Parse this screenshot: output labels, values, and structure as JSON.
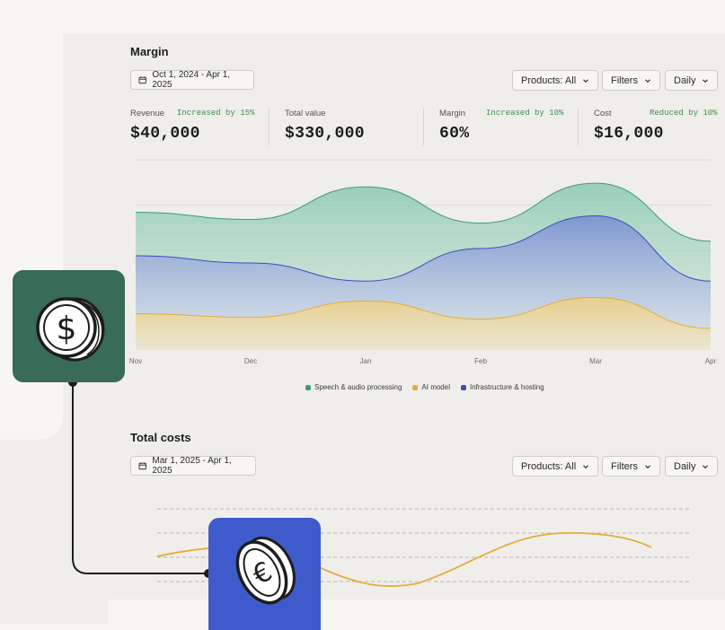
{
  "colors": {
    "speech": "#3f9a7c",
    "ai_model": "#e2ad3a",
    "infra": "#3b4cc0",
    "green_tile": "#386b58",
    "blue_tile": "#3f5bcb",
    "trend_green": "#3f8e4a"
  },
  "margin_section": {
    "title": "Margin",
    "date_range": "Oct 1, 2024 - Apr 1, 2025",
    "products_label": "Products: All",
    "filters_label": "Filters",
    "interval_label": "Daily",
    "stats": [
      {
        "label": "Revenue",
        "trend": "Increased by 15%",
        "value": "$40,000"
      },
      {
        "label": "Total value",
        "trend": "",
        "value": "$330,000"
      },
      {
        "label": "Margin",
        "trend": "Increased by 10%",
        "value": "60%"
      },
      {
        "label": "Cost",
        "trend": "Reduced by 10%",
        "value": "$16,000"
      }
    ]
  },
  "chart_data": {
    "type": "area",
    "x": [
      "Nov",
      "Dec",
      "Jan",
      "Feb",
      "Mar",
      "Apr"
    ],
    "x_ticks": [
      "Nov",
      "Dec",
      "Jan",
      "Feb",
      "Mar",
      "Apr"
    ],
    "grid": true,
    "legend_position": "bottom-center",
    "ylim": [
      0,
      100
    ],
    "series": [
      {
        "name": "Speech & audio processing",
        "values": [
          76,
          72,
          90,
          70,
          92,
          60
        ],
        "color": "#3f9a7c"
      },
      {
        "name": "AI model",
        "values": [
          20,
          18,
          27,
          17,
          29,
          12
        ],
        "color": "#e2ad3a"
      },
      {
        "name": "Infrastructure & hosting",
        "values": [
          52,
          48,
          38,
          56,
          74,
          38
        ],
        "color": "#3b4cc0"
      }
    ]
  },
  "costs_section": {
    "title": "Total costs",
    "date_range": "Mar 1, 2025 - Apr 1, 2025",
    "products_label": "Products: All",
    "filters_label": "Filters",
    "interval_label": "Daily"
  },
  "icons": {
    "dollar_coin": "dollar-coin-icon",
    "euro_coin": "euro-coin-icon",
    "calendar": "calendar-icon",
    "chevron": "chevron-down-icon"
  }
}
